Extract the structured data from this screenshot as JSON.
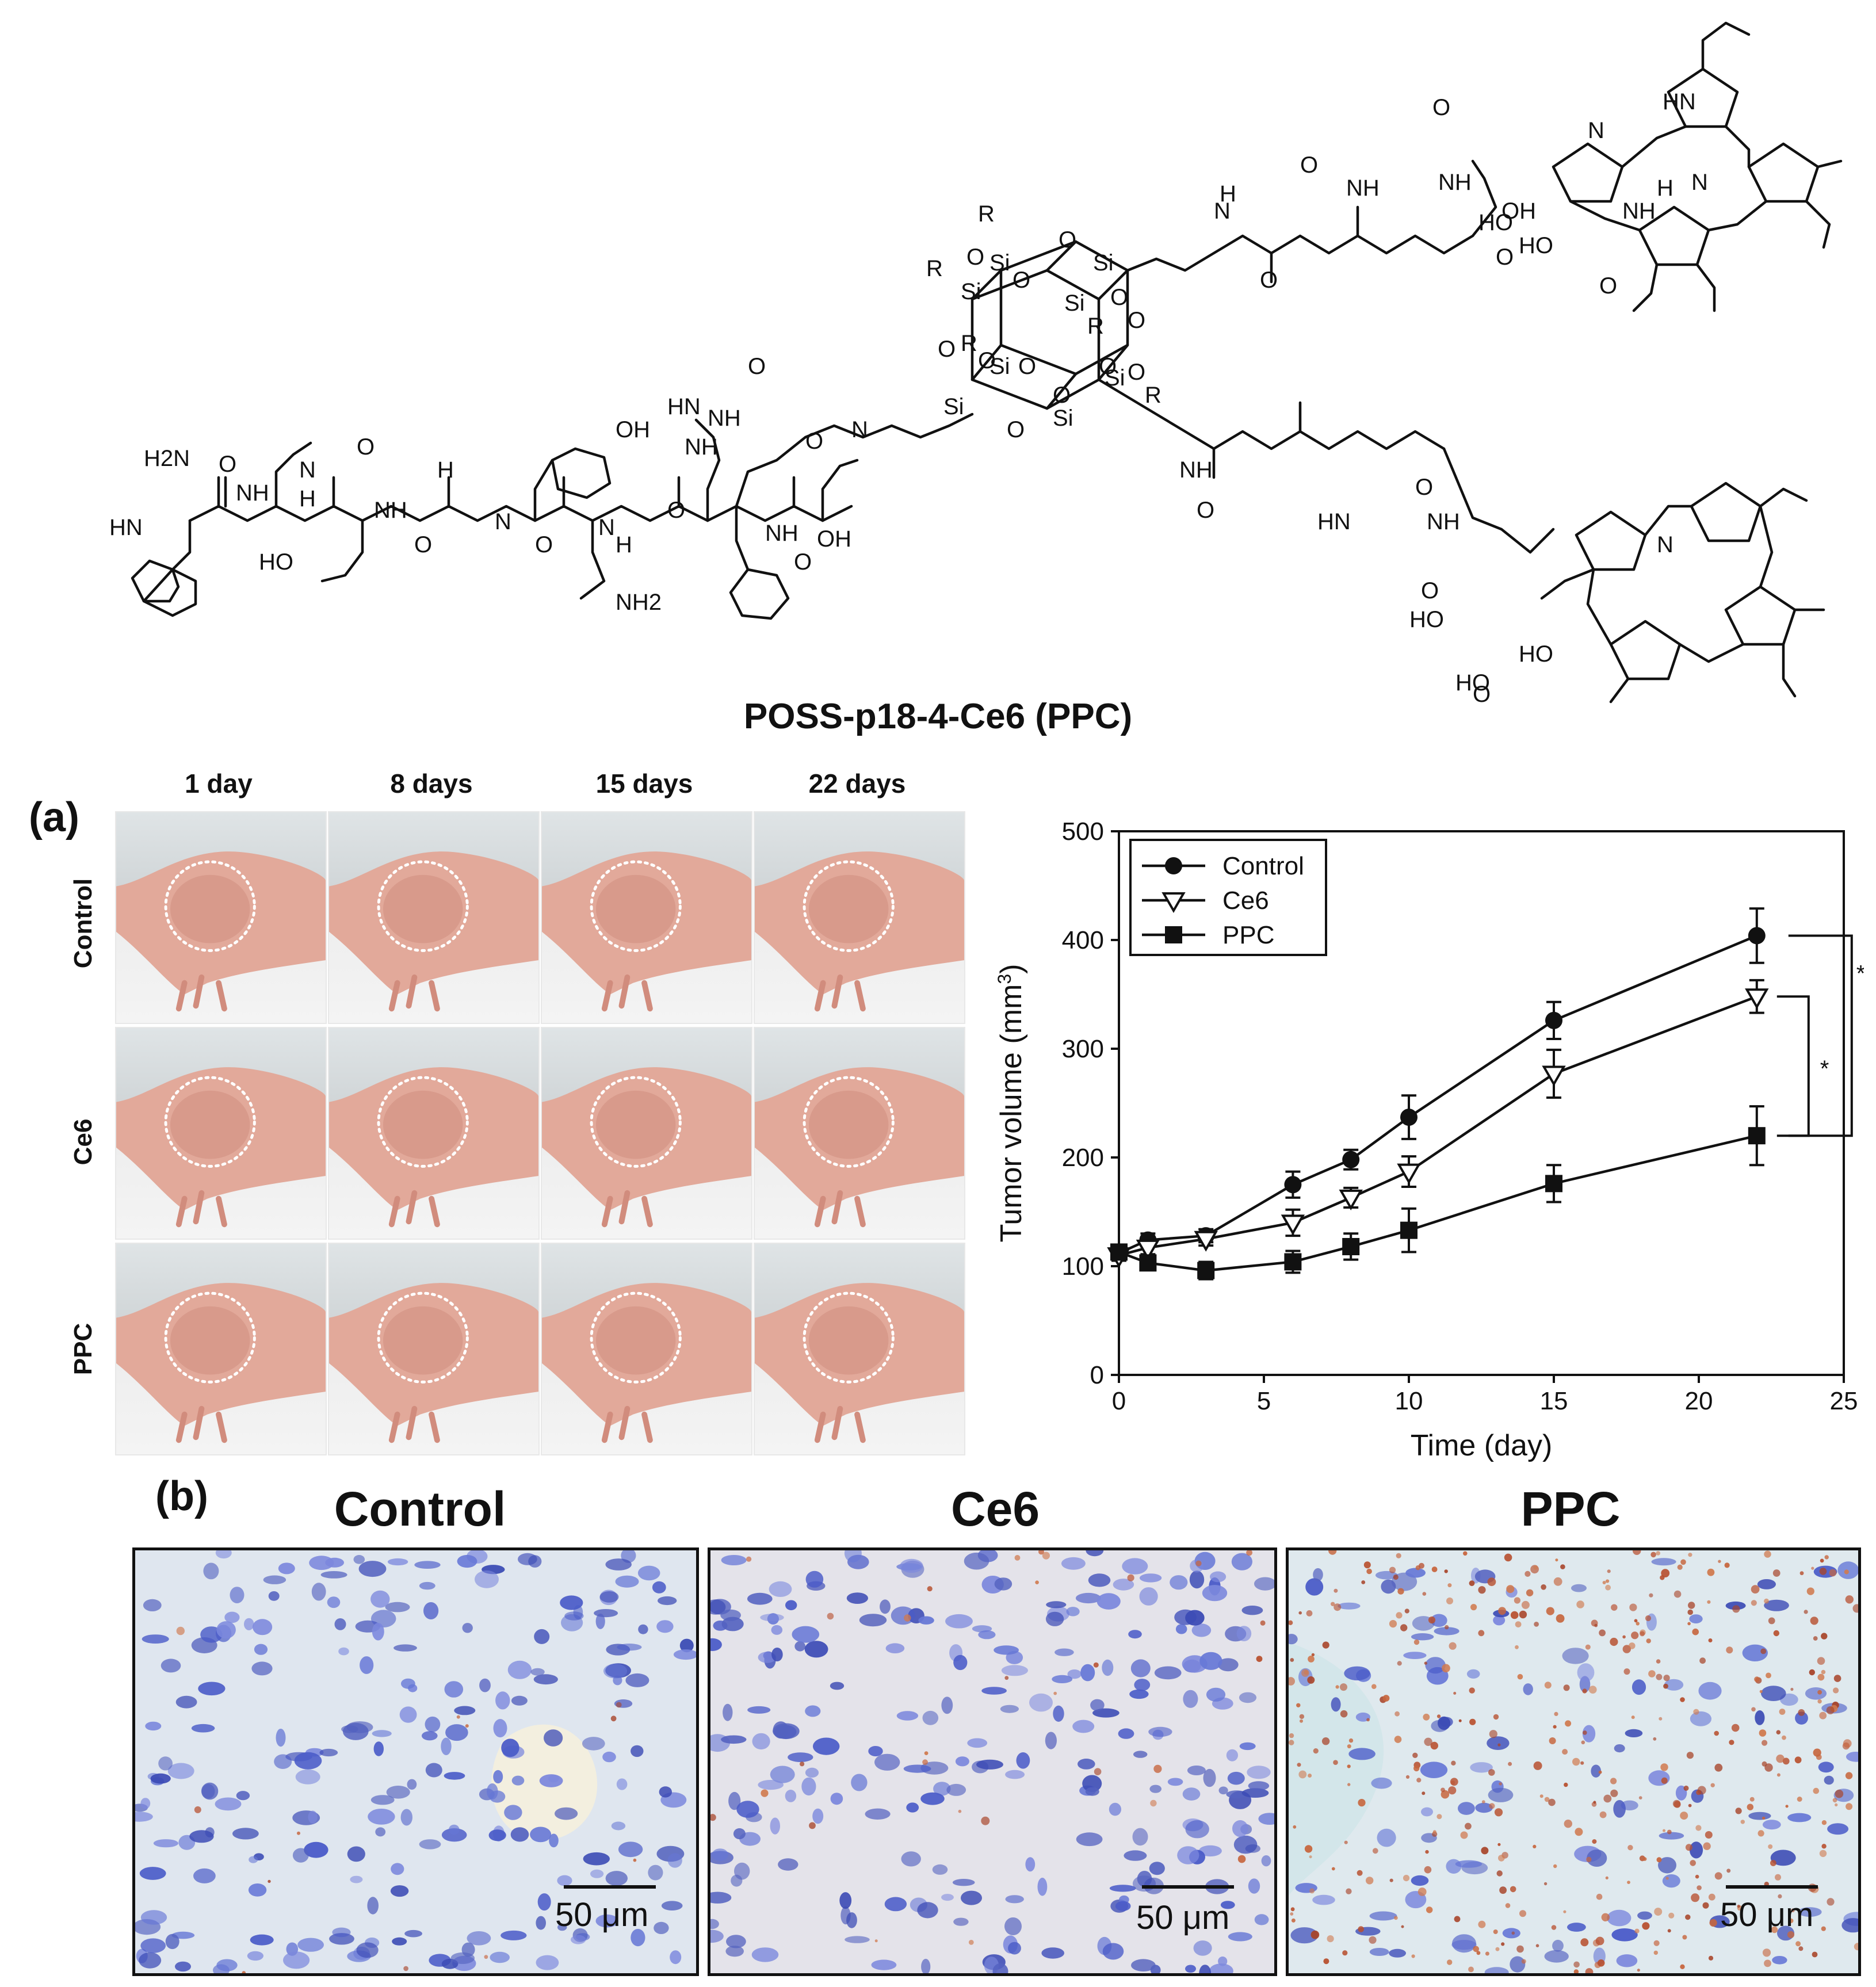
{
  "compound_name": "POSS-p18-4-Ce6 (PPC)",
  "structure": {
    "atoms": [
      "R",
      "R",
      "R",
      "R",
      "R",
      "O",
      "O",
      "O",
      "O",
      "O",
      "O",
      "O",
      "O",
      "O",
      "O",
      "O",
      "O",
      "Si",
      "Si",
      "Si",
      "Si",
      "Si",
      "Si",
      "Si",
      "Si",
      "HN",
      "H2N",
      "NH",
      "N",
      "H",
      "HO",
      "O",
      "O",
      "OH",
      "NH",
      "H",
      "N",
      "O",
      "O",
      "NH2",
      "HN",
      "NH",
      "NH",
      "N",
      "H",
      "NH",
      "N",
      "O",
      "O",
      "O",
      "O",
      "OH",
      "N",
      "H",
      "NH",
      "O",
      "NH",
      "N",
      "HN",
      "HO",
      "O",
      "HO",
      "O",
      "N",
      "NH",
      "H",
      "O",
      "O",
      "OH",
      "NH",
      "HN",
      "HO",
      "O",
      "NH",
      "O",
      "HO",
      "N",
      "HO",
      "O",
      "O"
    ]
  },
  "panel_a": {
    "label": "(a)",
    "columns": [
      "1 day",
      "8 days",
      "15 days",
      "22 days"
    ],
    "rows": [
      "Control",
      "Ce6",
      "PPC"
    ]
  },
  "chart_data": {
    "type": "line",
    "title": "",
    "xlabel": "Time (day)",
    "ylabel": "Tumor volume (mm",
    "ylabel_sup": "3",
    "ylabel_end": ")",
    "xlim": [
      0,
      25
    ],
    "ylim": [
      0,
      500
    ],
    "xticks": [
      "0",
      "5",
      "10",
      "15",
      "20",
      "25"
    ],
    "yticks": [
      "0",
      "100",
      "200",
      "300",
      "400",
      "500"
    ],
    "legend_position": "top-left",
    "series": [
      {
        "name": "Control",
        "marker": "filled-circle",
        "x": [
          0,
          1,
          3,
          6,
          8,
          10,
          15,
          22
        ],
        "y": [
          112,
          124,
          128,
          175,
          198,
          237,
          326,
          404
        ],
        "err": [
          5,
          6,
          6,
          12,
          9,
          20,
          17,
          25
        ]
      },
      {
        "name": "Ce6",
        "marker": "open-triangle-down",
        "x": [
          0,
          1,
          3,
          6,
          8,
          10,
          15,
          22
        ],
        "y": [
          110,
          117,
          125,
          140,
          163,
          187,
          277,
          348
        ],
        "err": [
          5,
          6,
          6,
          12,
          9,
          14,
          22,
          15
        ]
      },
      {
        "name": "PPC",
        "marker": "filled-square",
        "x": [
          0,
          1,
          3,
          6,
          8,
          10,
          15,
          22
        ],
        "y": [
          113,
          103,
          96,
          104,
          118,
          133,
          176,
          220
        ],
        "err": [
          5,
          6,
          8,
          10,
          12,
          20,
          17,
          27
        ]
      }
    ],
    "significance": [
      "*",
      "*"
    ]
  },
  "panel_b": {
    "label": "(b)",
    "titles": [
      "Control",
      "Ce6",
      "PPC"
    ],
    "scale_bar": "50 μm"
  }
}
